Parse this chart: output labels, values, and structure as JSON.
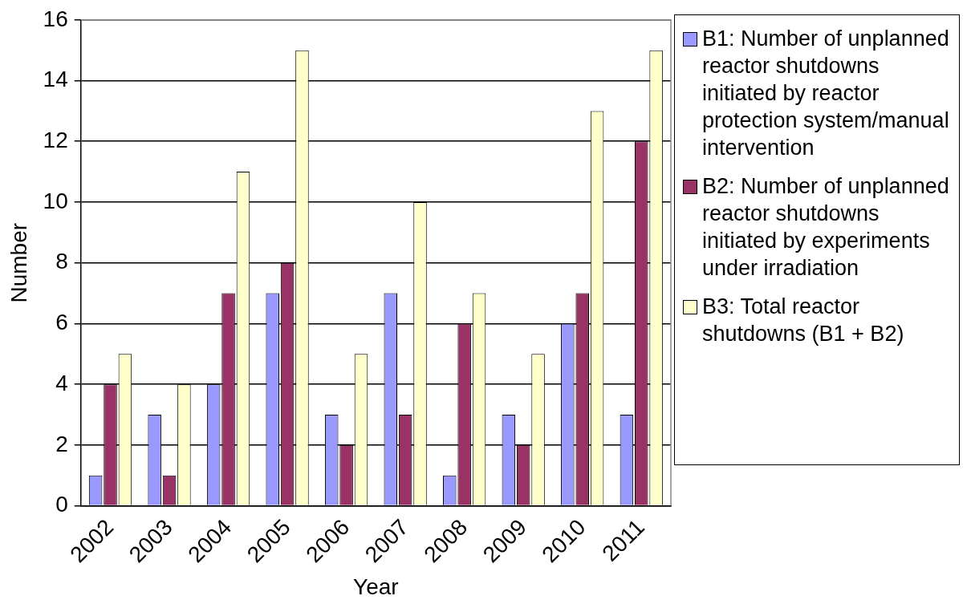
{
  "chart_data": {
    "type": "bar",
    "xlabel": "Year",
    "ylabel": "Number",
    "categories": [
      "2002",
      "2003",
      "2004",
      "2005",
      "2006",
      "2007",
      "2008",
      "2009",
      "2010",
      "2011"
    ],
    "series": [
      {
        "name": "B1: Number of unplanned reactor shutdowns initiated by reactor protection system/manual intervention",
        "color": "#9999ff",
        "values": [
          1,
          3,
          4,
          7,
          3,
          7,
          1,
          3,
          6,
          3
        ]
      },
      {
        "name": "B2: Number of unplanned reactor shutdowns initiated by experiments under irradiation",
        "color": "#993366",
        "values": [
          4,
          1,
          7,
          8,
          2,
          3,
          6,
          2,
          7,
          12
        ]
      },
      {
        "name": "B3: Total reactor shutdowns (B1 + B2)",
        "color": "#ffffcc",
        "values": [
          5,
          4,
          11,
          15,
          5,
          10,
          7,
          5,
          13,
          15
        ]
      }
    ],
    "ylim": [
      0,
      16
    ],
    "yticks": [
      0,
      2,
      4,
      6,
      8,
      10,
      12,
      14,
      16
    ],
    "grid": "y",
    "legend": "right"
  }
}
